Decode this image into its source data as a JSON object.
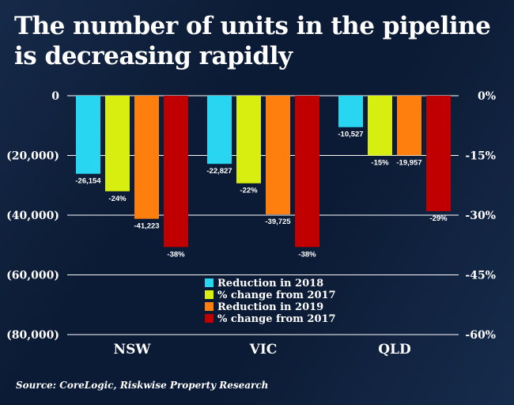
{
  "title": "The number of units in the pipeline is decreasing rapidly",
  "source": "Source: CoreLogic, Riskwise Property Research",
  "chart_data": {
    "type": "bar",
    "title": "The number of units in the pipeline is decreasing rapidly",
    "categories": [
      "NSW",
      "VIC",
      "QLD"
    ],
    "left_axis": {
      "ylim": [
        -80000,
        0
      ],
      "ticks": [
        "0",
        "(20,000)",
        "(40,000)",
        "(60,000)",
        "(80,000)"
      ]
    },
    "right_axis": {
      "ylim": [
        -60,
        0
      ],
      "ticks": [
        "0%",
        "-15%",
        "-30%",
        "-45%",
        "-60%"
      ]
    },
    "grid": true,
    "legend_position": "bottom-center",
    "series": [
      {
        "name": "Reduction in 2018",
        "axis": "left",
        "color": "#29d6f2",
        "values": [
          -26154,
          -22827,
          -10527
        ],
        "labels": [
          "-26,154",
          "-22,827",
          "-10,527"
        ]
      },
      {
        "name": "% change from 2017",
        "axis": "right",
        "color": "#d8ee10",
        "values": [
          -24,
          -22,
          -15
        ],
        "labels": [
          "-24%",
          "-22%",
          "-15%"
        ]
      },
      {
        "name": "Reduction in 2019",
        "axis": "left",
        "color": "#ff7f0e",
        "values": [
          -41223,
          -39725,
          -19957
        ],
        "labels": [
          "-41,223",
          "-39,725",
          "-19,957"
        ]
      },
      {
        "name": "% change from 2017",
        "axis": "right",
        "color": "#c00000",
        "values": [
          -38,
          -38,
          -29
        ],
        "labels": [
          "-38%",
          "-38%",
          "-29%"
        ]
      }
    ]
  }
}
